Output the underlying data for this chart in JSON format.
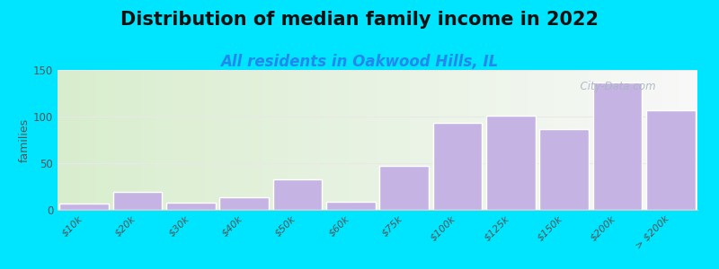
{
  "title": "Distribution of median family income in 2022",
  "subtitle": "All residents in Oakwood Hills, IL",
  "categories": [
    "$10k",
    "$20k",
    "$30k",
    "$40k",
    "$50k",
    "$60k",
    "$75k",
    "$100k",
    "$125k",
    "$150k",
    "$200k",
    "> $200k"
  ],
  "values": [
    7,
    19,
    8,
    13,
    33,
    9,
    47,
    93,
    101,
    87,
    137,
    107
  ],
  "bar_color": "#c5b4e3",
  "background_color": "#00e5ff",
  "plot_bg_gradient_left": "#d8edcd",
  "plot_bg_gradient_right": "#f8f8f8",
  "ylabel": "families",
  "ylim": [
    0,
    150
  ],
  "yticks": [
    0,
    50,
    100,
    150
  ],
  "title_fontsize": 15,
  "subtitle_fontsize": 12,
  "subtitle_color": "#2288ee",
  "watermark_text": "  City-Data.com",
  "watermark_color": "#aab4c4",
  "grid_color": "#e8e8e8"
}
